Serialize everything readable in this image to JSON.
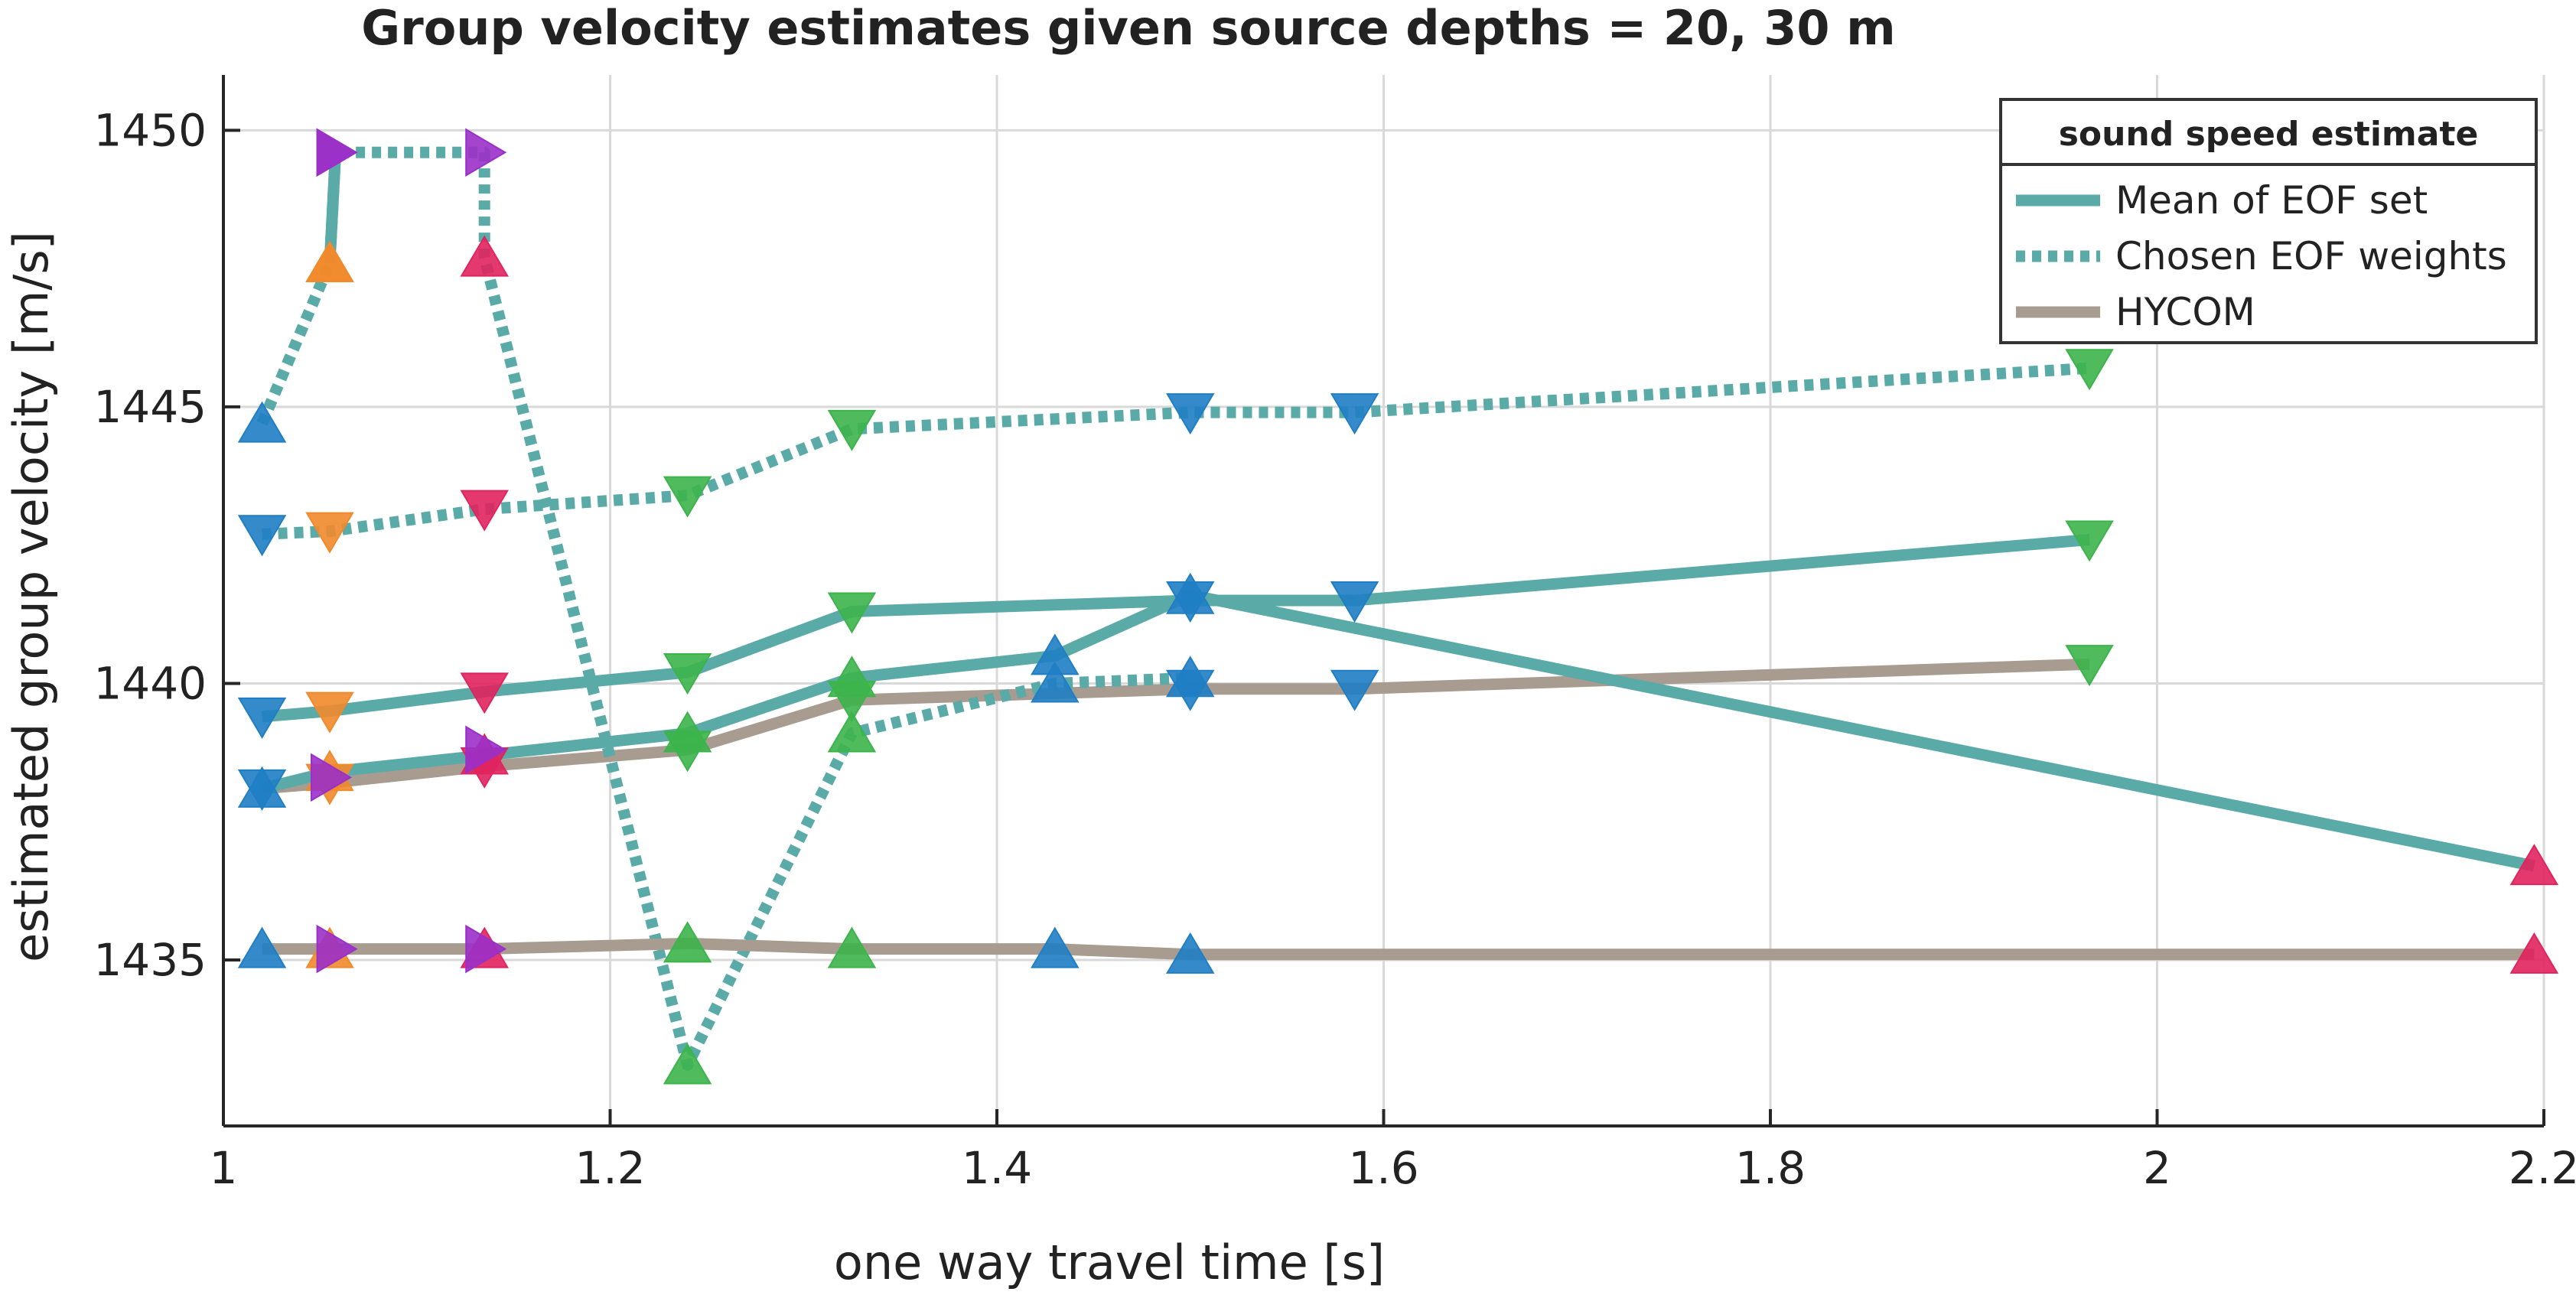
{
  "chart_data": {
    "type": "line",
    "title": "Group velocity estimates given source depths = 20, 30 m",
    "xlabel": "one way travel time [s]",
    "ylabel": "estimated group velocity [m/s]",
    "xlim": [
      1.0,
      2.2
    ],
    "ylim": [
      1432.0,
      1451.0
    ],
    "xticks": [
      1,
      1.2,
      1.4,
      1.6,
      1.8,
      2,
      2.2
    ],
    "xtick_labels": [
      "1",
      "1.2",
      "1.4",
      "1.6",
      "1.8",
      "2",
      "2.2"
    ],
    "yticks": [
      1435,
      1440,
      1445,
      1450
    ],
    "ytick_labels": [
      "1435",
      "1440",
      "1445",
      "1450"
    ],
    "grid": true,
    "legend": {
      "title": "sound speed estimate",
      "placement": "top-right",
      "entries": [
        {
          "label": "Mean of EOF set",
          "color": "#5aaaa8",
          "style": "solid"
        },
        {
          "label": "Chosen EOF weights",
          "color": "#5aaaa8",
          "style": "dotted"
        },
        {
          "label": "HYCOM",
          "color": "#a89b90",
          "style": "solid"
        }
      ]
    },
    "marker_colors": {
      "blue": "#1f7ec4",
      "orange": "#f08a2c",
      "red": "#e0245e",
      "green": "#3cb44b",
      "purple": "#9b30c8"
    },
    "series": [
      {
        "legend_key": "Chosen EOF weights",
        "style": "dotted",
        "color": "#5aaaa8",
        "marker": "v",
        "points": [
          {
            "x": 1.02,
            "y": 1442.7,
            "m": "blue"
          },
          {
            "x": 1.055,
            "y": 1442.75,
            "m": "orange"
          },
          {
            "x": 1.135,
            "y": 1443.15,
            "m": "red"
          },
          {
            "x": 1.24,
            "y": 1443.4,
            "m": "green"
          },
          {
            "x": 1.325,
            "y": 1444.6,
            "m": "green"
          },
          {
            "x": 1.5,
            "y": 1444.9,
            "m": "blue"
          },
          {
            "x": 1.585,
            "y": 1444.9,
            "m": "blue"
          },
          {
            "x": 1.965,
            "y": 1445.7,
            "m": "green"
          }
        ]
      },
      {
        "legend_key": "Mean of EOF set",
        "style": "solid",
        "color": "#5aaaa8",
        "marker": "v",
        "points": [
          {
            "x": 1.02,
            "y": 1439.4,
            "m": "blue"
          },
          {
            "x": 1.055,
            "y": 1439.5,
            "m": "orange"
          },
          {
            "x": 1.135,
            "y": 1439.85,
            "m": "red"
          },
          {
            "x": 1.24,
            "y": 1440.2,
            "m": "green"
          },
          {
            "x": 1.325,
            "y": 1441.3,
            "m": "green"
          },
          {
            "x": 1.5,
            "y": 1441.5,
            "m": "blue"
          },
          {
            "x": 1.585,
            "y": 1441.5,
            "m": "blue"
          },
          {
            "x": 1.965,
            "y": 1442.6,
            "m": "green"
          }
        ]
      },
      {
        "legend_key": "HYCOM",
        "style": "solid",
        "color": "#a89b90",
        "marker": "v",
        "points": [
          {
            "x": 1.02,
            "y": 1438.1,
            "m": "blue"
          },
          {
            "x": 1.055,
            "y": 1438.2,
            "m": "orange"
          },
          {
            "x": 1.135,
            "y": 1438.5,
            "m": "red"
          },
          {
            "x": 1.24,
            "y": 1438.8,
            "m": "green"
          },
          {
            "x": 1.325,
            "y": 1439.7,
            "m": "green"
          },
          {
            "x": 1.5,
            "y": 1439.9,
            "m": "blue"
          },
          {
            "x": 1.585,
            "y": 1439.9,
            "m": "blue"
          },
          {
            "x": 1.965,
            "y": 1440.35,
            "m": "green"
          }
        ]
      },
      {
        "legend_key": "Chosen EOF weights",
        "style": "dotted",
        "color": "#5aaaa8",
        "marker": "^",
        "points": [
          {
            "x": 1.02,
            "y": 1444.7,
            "m": "blue"
          },
          {
            "x": 1.055,
            "y": 1447.6,
            "m": "orange"
          },
          {
            "x": 1.058,
            "y": 1449.6,
            "m": "purple",
            "shape": ">"
          },
          {
            "x": 1.135,
            "y": 1449.6,
            "m": "purple",
            "shape": ">"
          },
          {
            "x": 1.135,
            "y": 1447.7,
            "m": "red"
          },
          {
            "x": 1.24,
            "y": 1433.1,
            "m": "green"
          },
          {
            "x": 1.325,
            "y": 1439.1,
            "m": "green"
          },
          {
            "x": 1.43,
            "y": 1440.0,
            "m": "blue"
          },
          {
            "x": 1.5,
            "y": 1440.1,
            "m": "blue"
          }
        ]
      },
      {
        "legend_key": "Mean of EOF set",
        "style": "solid",
        "color": "#5aaaa8",
        "marker": "^",
        "points": [
          {
            "x": 1.055,
            "y": 1447.6,
            "m": "orange"
          },
          {
            "x": 1.058,
            "y": 1449.6,
            "m": "purple",
            "shape": ">"
          }
        ]
      },
      {
        "legend_key": "Mean of EOF set",
        "style": "solid",
        "color": "#5aaaa8",
        "marker": "^",
        "points": [
          {
            "x": 1.02,
            "y": 1438.1,
            "m": "blue"
          },
          {
            "x": 1.055,
            "y": 1438.4,
            "m": "orange"
          },
          {
            "x": 1.135,
            "y": 1438.7,
            "m": "red"
          },
          {
            "x": 1.24,
            "y": 1439.1,
            "m": "green"
          },
          {
            "x": 1.325,
            "y": 1440.1,
            "m": "green"
          },
          {
            "x": 1.43,
            "y": 1440.5,
            "m": "blue"
          },
          {
            "x": 1.5,
            "y": 1441.6,
            "m": "blue"
          },
          {
            "x": 2.195,
            "y": 1436.7,
            "m": "red"
          }
        ]
      },
      {
        "legend_key": "HYCOM",
        "style": "solid",
        "color": "#a89b90",
        "marker": "^",
        "points": [
          {
            "x": 1.02,
            "y": 1435.2,
            "m": "blue"
          },
          {
            "x": 1.055,
            "y": 1435.2,
            "m": "orange"
          },
          {
            "x": 1.135,
            "y": 1435.2,
            "m": "red"
          },
          {
            "x": 1.24,
            "y": 1435.3,
            "m": "green"
          },
          {
            "x": 1.325,
            "y": 1435.2,
            "m": "green"
          },
          {
            "x": 1.43,
            "y": 1435.2,
            "m": "blue"
          },
          {
            "x": 1.5,
            "y": 1435.1,
            "m": "blue"
          },
          {
            "x": 2.195,
            "y": 1435.1,
            "m": "red"
          }
        ]
      }
    ],
    "extra_markers": [
      {
        "x": 1.058,
        "y": 1435.2,
        "m": "purple",
        "shape": ">"
      },
      {
        "x": 1.135,
        "y": 1435.2,
        "m": "purple",
        "shape": ">"
      },
      {
        "x": 1.135,
        "y": 1438.8,
        "m": "purple",
        "shape": ">"
      },
      {
        "x": 1.055,
        "y": 1438.3,
        "m": "purple",
        "shape": ">"
      }
    ]
  }
}
